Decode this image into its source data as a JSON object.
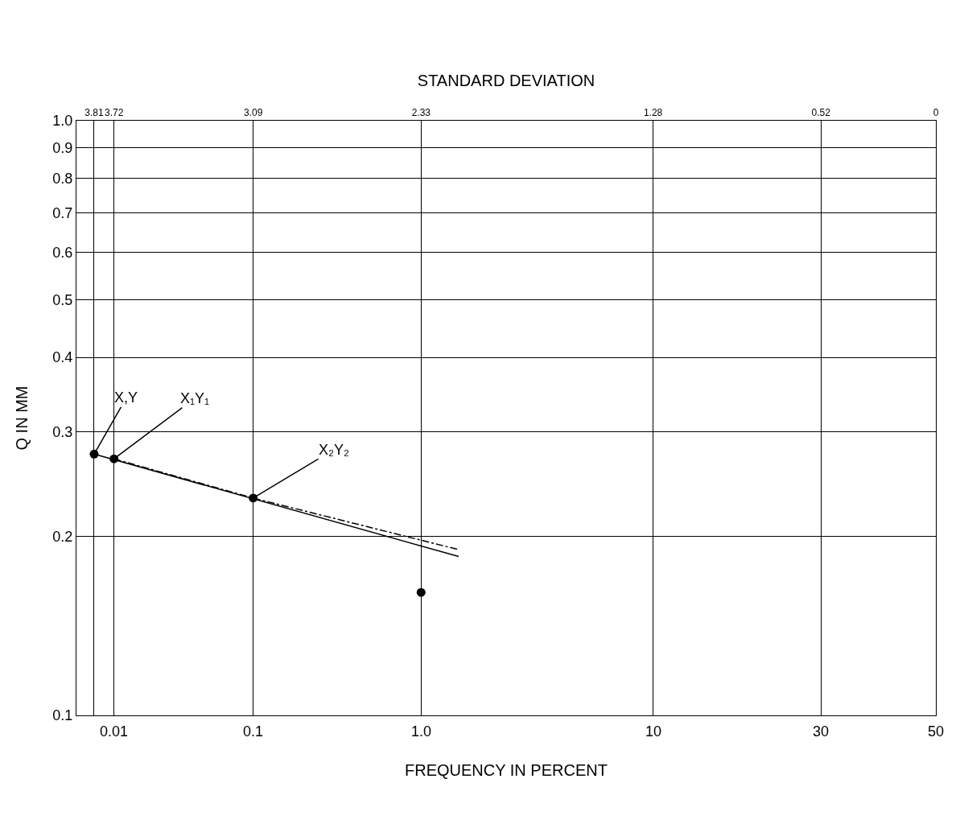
{
  "chart_data": {
    "type": "scatter",
    "xlabel": "STANDARD DEVIATION",
    "ylabel": "Q IN MM",
    "xlim": [
      3.89,
      0
    ],
    "ylim": [
      0.1,
      1.0
    ],
    "log": "y",
    "xticks": [
      3.81,
      3.72,
      3.09,
      2.33,
      1.28,
      0.52,
      0
    ],
    "yticks": [
      {
        "value": 0.1,
        "label": "0.1"
      },
      {
        "value": 0.2,
        "label": "0.2"
      },
      {
        "value": 0.3,
        "label": "0.3"
      },
      {
        "value": 0.4,
        "label": "0.4"
      },
      {
        "value": 0.5,
        "label": "0.5"
      },
      {
        "value": 0.6,
        "label": "0.6"
      },
      {
        "value": 0.7,
        "label": "0.7"
      },
      {
        "value": 0.8,
        "label": "0.8"
      },
      {
        "value": 0.9,
        "label": "0.9"
      },
      {
        "value": 1.0,
        "label": "1.0"
      }
    ],
    "grid": true,
    "series": [
      {
        "type": "line",
        "color": "#000000",
        "line_style": "solid",
        "marker": "none",
        "x": [
          3.81,
          2.16
        ],
        "values": [
          0.275,
          0.185
        ]
      },
      {
        "type": "line",
        "color": "#000000",
        "line_style": "dashed",
        "marker": "none",
        "x": [
          3.72,
          3.09,
          2.16
        ],
        "values": [
          0.27,
          0.232,
          0.19
        ]
      },
      {
        "color": "#000000",
        "marker": "circle",
        "x": [
          3.81,
          3.72,
          3.09,
          2.33
        ],
        "values": [
          0.275,
          0.27,
          0.232,
          0.161
        ]
      }
    ],
    "annotations": [
      {
        "text": "X,Y",
        "x": 3.81,
        "y": 0.275
      },
      {
        "text": "X₁Y₁",
        "x": 3.72,
        "y": 0.27
      },
      {
        "text": "X₂Y₂",
        "x": 3.09,
        "y": 0.232
      },
      "FREQUENCY IN PERCENT",
      "0.01",
      "0.1",
      "1.0",
      "10",
      "30",
      "50"
    ]
  }
}
